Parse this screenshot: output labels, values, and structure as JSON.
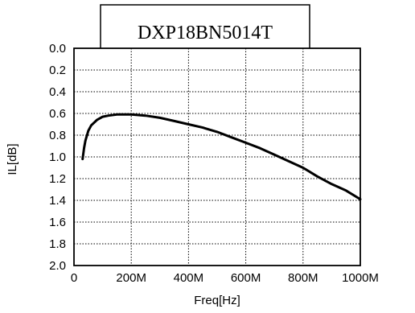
{
  "chart_data": {
    "type": "line",
    "title": "DXP18BN5014T",
    "xlabel": "Freq[Hz]",
    "ylabel": "IL[dB]",
    "xlim": [
      0,
      1000
    ],
    "ylim": [
      0.0,
      2.0
    ],
    "y_inverted": true,
    "grid": true,
    "x_tick_labels": [
      "0",
      "200M",
      "400M",
      "600M",
      "800M",
      "1000M"
    ],
    "y_tick_labels": [
      "0.0",
      "0.2",
      "0.4",
      "0.6",
      "0.8",
      "1.0",
      "1.2",
      "1.4",
      "1.6",
      "1.8",
      "2.0"
    ],
    "series": [
      {
        "color": "#000000",
        "x": [
          30,
          35,
          40,
          50,
          60,
          80,
          100,
          120,
          150,
          180,
          200,
          250,
          300,
          350,
          400,
          450,
          500,
          550,
          600,
          650,
          700,
          750,
          800,
          850,
          900,
          950,
          1000
        ],
        "y": [
          1.02,
          0.92,
          0.85,
          0.76,
          0.71,
          0.66,
          0.63,
          0.62,
          0.61,
          0.61,
          0.61,
          0.62,
          0.64,
          0.67,
          0.7,
          0.73,
          0.77,
          0.82,
          0.87,
          0.92,
          0.98,
          1.04,
          1.1,
          1.18,
          1.25,
          1.31,
          1.39
        ]
      }
    ]
  }
}
